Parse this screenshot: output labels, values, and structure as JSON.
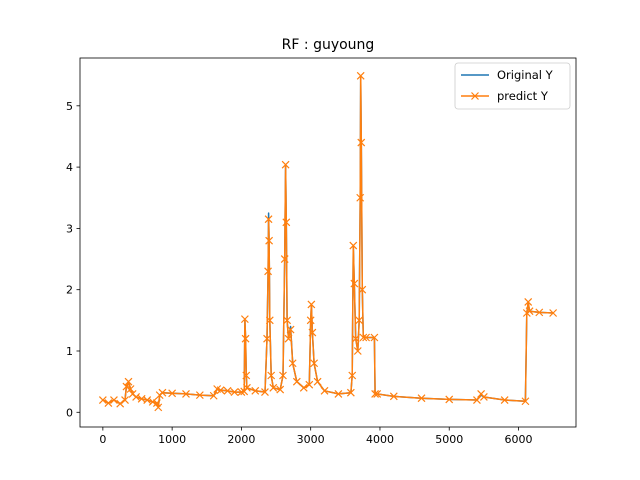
{
  "chart_data": {
    "type": "line",
    "title": "RF : guyoung",
    "xlabel": "",
    "ylabel": "",
    "xlim": [
      -330,
      6830
    ],
    "ylim": [
      -0.24,
      5.78
    ],
    "xticks": [
      0,
      1000,
      2000,
      3000,
      4000,
      5000,
      6000
    ],
    "yticks": [
      0,
      1,
      2,
      3,
      4,
      5
    ],
    "grid": false,
    "legend_position": "top-right",
    "series": [
      {
        "name": "Original Y",
        "color": "#1f77b4",
        "marker": "none",
        "points": [
          [
            0,
            0.2
          ],
          [
            80,
            0.15
          ],
          [
            160,
            0.2
          ],
          [
            250,
            0.14
          ],
          [
            320,
            0.2
          ],
          [
            340,
            0.42
          ],
          [
            370,
            0.5
          ],
          [
            400,
            0.38
          ],
          [
            430,
            0.3
          ],
          [
            480,
            0.25
          ],
          [
            560,
            0.22
          ],
          [
            640,
            0.2
          ],
          [
            720,
            0.17
          ],
          [
            780,
            0.15
          ],
          [
            800,
            0.08
          ],
          [
            820,
            0.28
          ],
          [
            860,
            0.32
          ],
          [
            1000,
            0.31
          ],
          [
            1200,
            0.3
          ],
          [
            1400,
            0.28
          ],
          [
            1600,
            0.27
          ],
          [
            1650,
            0.38
          ],
          [
            1700,
            0.36
          ],
          [
            1800,
            0.35
          ],
          [
            1900,
            0.33
          ],
          [
            2000,
            0.33
          ],
          [
            2040,
            0.34
          ],
          [
            2050,
            1.5
          ],
          [
            2060,
            1.2
          ],
          [
            2070,
            0.6
          ],
          [
            2080,
            0.4
          ],
          [
            2200,
            0.35
          ],
          [
            2340,
            0.33
          ],
          [
            2370,
            1.2
          ],
          [
            2385,
            2.3
          ],
          [
            2392,
            3.25
          ],
          [
            2400,
            2.8
          ],
          [
            2410,
            1.5
          ],
          [
            2430,
            0.6
          ],
          [
            2460,
            0.4
          ],
          [
            2560,
            0.37
          ],
          [
            2600,
            0.6
          ],
          [
            2625,
            2.5
          ],
          [
            2638,
            4.02
          ],
          [
            2648,
            3.1
          ],
          [
            2660,
            1.5
          ],
          [
            2680,
            1.2
          ],
          [
            2710,
            1.4
          ],
          [
            2740,
            0.8
          ],
          [
            2800,
            0.5
          ],
          [
            2900,
            0.4
          ],
          [
            2980,
            0.45
          ],
          [
            3000,
            1.5
          ],
          [
            3010,
            1.75
          ],
          [
            3025,
            1.3
          ],
          [
            3050,
            0.8
          ],
          [
            3100,
            0.5
          ],
          [
            3200,
            0.35
          ],
          [
            3400,
            0.3
          ],
          [
            3580,
            0.32
          ],
          [
            3600,
            0.6
          ],
          [
            3615,
            2.7
          ],
          [
            3630,
            2.1
          ],
          [
            3650,
            1.2
          ],
          [
            3680,
            1.0
          ],
          [
            3700,
            1.5
          ],
          [
            3715,
            3.5
          ],
          [
            3722,
            5.48
          ],
          [
            3730,
            4.4
          ],
          [
            3745,
            2.0
          ],
          [
            3760,
            1.22
          ],
          [
            3800,
            1.22
          ],
          [
            3920,
            1.22
          ],
          [
            3930,
            0.3
          ],
          [
            3960,
            0.3
          ],
          [
            4200,
            0.26
          ],
          [
            4600,
            0.23
          ],
          [
            5000,
            0.21
          ],
          [
            5400,
            0.2
          ],
          [
            5460,
            0.28
          ],
          [
            5500,
            0.25
          ],
          [
            5800,
            0.2
          ],
          [
            6100,
            0.18
          ],
          [
            6120,
            1.62
          ],
          [
            6140,
            1.78
          ],
          [
            6160,
            1.65
          ],
          [
            6300,
            1.63
          ],
          [
            6500,
            1.62
          ]
        ]
      },
      {
        "name": "predict Y",
        "color": "#ff7f0e",
        "marker": "x",
        "points": [
          [
            0,
            0.2
          ],
          [
            80,
            0.15
          ],
          [
            160,
            0.2
          ],
          [
            250,
            0.14
          ],
          [
            320,
            0.2
          ],
          [
            340,
            0.42
          ],
          [
            370,
            0.5
          ],
          [
            400,
            0.38
          ],
          [
            430,
            0.3
          ],
          [
            480,
            0.25
          ],
          [
            560,
            0.22
          ],
          [
            640,
            0.2
          ],
          [
            720,
            0.17
          ],
          [
            780,
            0.15
          ],
          [
            800,
            0.08
          ],
          [
            820,
            0.28
          ],
          [
            860,
            0.32
          ],
          [
            1000,
            0.31
          ],
          [
            1200,
            0.3
          ],
          [
            1400,
            0.28
          ],
          [
            1600,
            0.27
          ],
          [
            1650,
            0.38
          ],
          [
            1700,
            0.36
          ],
          [
            1800,
            0.35
          ],
          [
            1900,
            0.33
          ],
          [
            2000,
            0.33
          ],
          [
            2040,
            0.34
          ],
          [
            2050,
            1.52
          ],
          [
            2060,
            1.2
          ],
          [
            2070,
            0.6
          ],
          [
            2080,
            0.4
          ],
          [
            2200,
            0.35
          ],
          [
            2340,
            0.33
          ],
          [
            2370,
            1.2
          ],
          [
            2385,
            2.3
          ],
          [
            2392,
            3.15
          ],
          [
            2400,
            2.8
          ],
          [
            2410,
            1.5
          ],
          [
            2430,
            0.6
          ],
          [
            2460,
            0.4
          ],
          [
            2560,
            0.37
          ],
          [
            2600,
            0.6
          ],
          [
            2625,
            2.5
          ],
          [
            2638,
            4.04
          ],
          [
            2648,
            3.1
          ],
          [
            2660,
            1.5
          ],
          [
            2680,
            1.2
          ],
          [
            2710,
            1.35
          ],
          [
            2740,
            0.8
          ],
          [
            2800,
            0.5
          ],
          [
            2900,
            0.4
          ],
          [
            2980,
            0.45
          ],
          [
            3000,
            1.5
          ],
          [
            3010,
            1.76
          ],
          [
            3025,
            1.3
          ],
          [
            3050,
            0.8
          ],
          [
            3100,
            0.5
          ],
          [
            3200,
            0.35
          ],
          [
            3400,
            0.3
          ],
          [
            3580,
            0.32
          ],
          [
            3600,
            0.6
          ],
          [
            3615,
            2.72
          ],
          [
            3630,
            2.1
          ],
          [
            3650,
            1.2
          ],
          [
            3680,
            1.0
          ],
          [
            3700,
            1.5
          ],
          [
            3715,
            3.5
          ],
          [
            3722,
            5.49
          ],
          [
            3730,
            4.4
          ],
          [
            3745,
            2.0
          ],
          [
            3760,
            1.22
          ],
          [
            3800,
            1.22
          ],
          [
            3920,
            1.22
          ],
          [
            3930,
            0.3
          ],
          [
            3960,
            0.3
          ],
          [
            4200,
            0.26
          ],
          [
            4600,
            0.23
          ],
          [
            5000,
            0.21
          ],
          [
            5400,
            0.2
          ],
          [
            5460,
            0.3
          ],
          [
            5500,
            0.25
          ],
          [
            5800,
            0.2
          ],
          [
            6100,
            0.18
          ],
          [
            6120,
            1.62
          ],
          [
            6140,
            1.8
          ],
          [
            6160,
            1.65
          ],
          [
            6300,
            1.63
          ],
          [
            6500,
            1.62
          ]
        ]
      }
    ]
  }
}
